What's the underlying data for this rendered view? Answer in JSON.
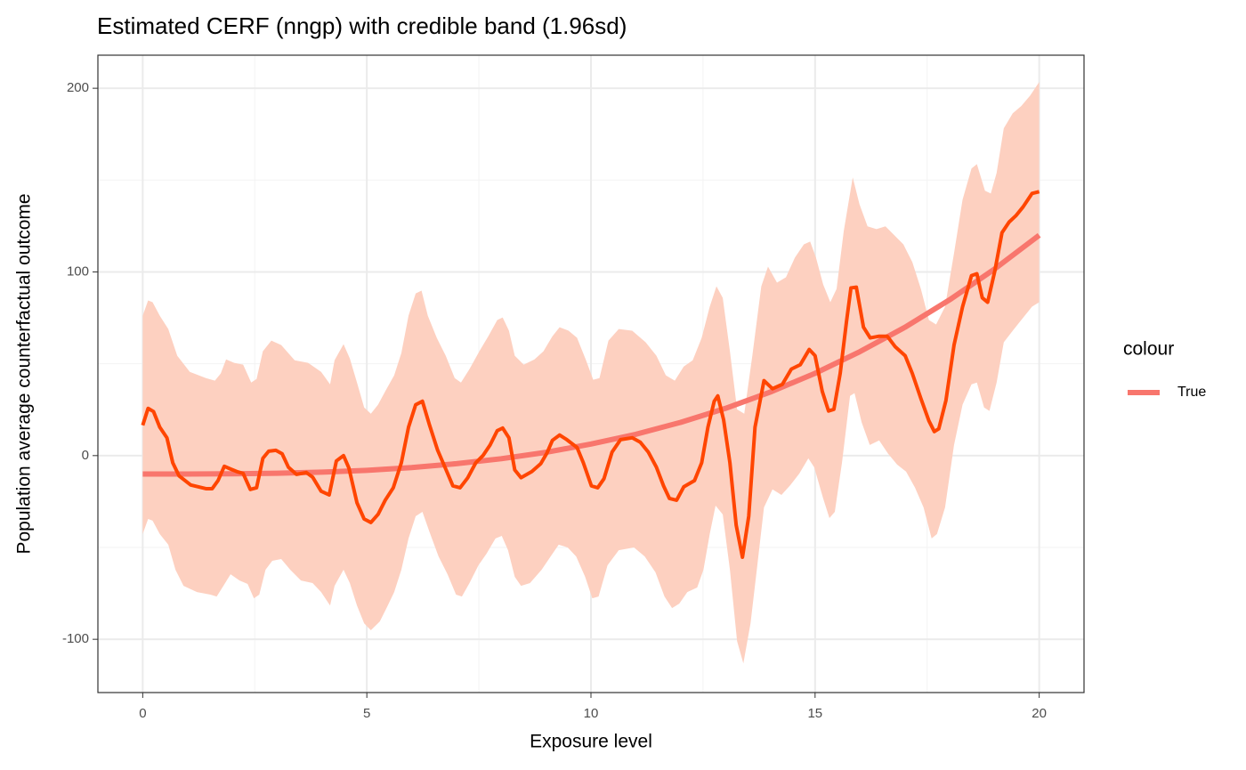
{
  "chart_data": {
    "type": "line",
    "title": "Estimated CERF (nngp) with credible band (1.96sd)",
    "x_label": "Exposure level",
    "y_label": "Population average counterfactual outcome",
    "legend_title": "colour",
    "xlim": [
      -1,
      21
    ],
    "ylim": [
      -129,
      218
    ],
    "xticks": [
      0,
      5,
      10,
      15,
      20
    ],
    "yticks": [
      -100,
      0,
      100,
      200
    ],
    "x_minor_grid": [
      2.5,
      7.5,
      12.5,
      17.5
    ],
    "y_minor_grid": [
      -50,
      50,
      150
    ],
    "grid": true,
    "series": [
      {
        "name": "True",
        "color": "#f8766d",
        "x": [
          0,
          1,
          2,
          3,
          4,
          5,
          6,
          7,
          8,
          9,
          10,
          11,
          12,
          13,
          14,
          15,
          16,
          17,
          18,
          19,
          20
        ],
        "values": [
          -10,
          -10,
          -9.9,
          -9.6,
          -9,
          -8,
          -6.5,
          -4.4,
          -1.7,
          1.8,
          6.3,
          11.6,
          18.1,
          25.7,
          34.6,
          44.8,
          56.6,
          69.8,
          84.8,
          101.5,
          120
        ]
      }
    ],
    "estimate": {
      "color": "#ff4500",
      "x": [
        0,
        0.12,
        0.24,
        0.38,
        0.54,
        0.67,
        0.81,
        1.07,
        1.41,
        1.55,
        1.68,
        1.82,
        1.96,
        2.1,
        2.24,
        2.4,
        2.54,
        2.68,
        2.81,
        2.97,
        3.11,
        3.25,
        3.43,
        3.65,
        3.79,
        3.98,
        4.16,
        4.32,
        4.48,
        4.6,
        4.78,
        4.94,
        5.09,
        5.25,
        5.41,
        5.59,
        5.77,
        5.93,
        6.09,
        6.24,
        6.4,
        6.58,
        6.76,
        6.92,
        7.08,
        7.25,
        7.43,
        7.59,
        7.75,
        7.91,
        8.03,
        8.17,
        8.3,
        8.44,
        8.68,
        8.88,
        9.02,
        9.14,
        9.3,
        9.46,
        9.69,
        9.83,
        10.01,
        10.15,
        10.29,
        10.47,
        10.66,
        10.92,
        11.1,
        11.28,
        11.46,
        11.62,
        11.75,
        11.91,
        12.07,
        12.31,
        12.47,
        12.61,
        12.75,
        12.83,
        12.96,
        13.1,
        13.24,
        13.38,
        13.52,
        13.66,
        13.86,
        14.05,
        14.27,
        14.47,
        14.67,
        14.87,
        15,
        15.16,
        15.3,
        15.42,
        15.56,
        15.7,
        15.8,
        15.92,
        16.08,
        16.23,
        16.43,
        16.61,
        16.79,
        17.01,
        17.17,
        17.36,
        17.54,
        17.66,
        17.76,
        17.92,
        18.1,
        18.29,
        18.49,
        18.61,
        18.73,
        18.85,
        19.01,
        19.17,
        19.33,
        19.48,
        19.64,
        19.84,
        20
      ],
      "values": [
        16.5,
        25.7,
        24,
        15.5,
        9.7,
        -3.9,
        -11,
        -16,
        -18,
        -18,
        -13.6,
        -5.8,
        -7.3,
        -8.7,
        -9.7,
        -18.4,
        -17.5,
        -1.5,
        2.4,
        2.9,
        1,
        -6.3,
        -10.2,
        -9.2,
        -11.7,
        -19.4,
        -21.4,
        -2.9,
        0,
        -6.8,
        -25.7,
        -34.5,
        -36.4,
        -32,
        -24.3,
        -17.5,
        -3.9,
        15.5,
        27.7,
        29.6,
        16.5,
        2.9,
        -7.3,
        -16.5,
        -17.5,
        -12.1,
        -3.9,
        0,
        5.8,
        13.6,
        15,
        9.7,
        -7.8,
        -12,
        -8.7,
        -4.4,
        1.5,
        8.3,
        11.2,
        8.7,
        4.4,
        -3.9,
        -16.5,
        -17.5,
        -12.6,
        1.9,
        8.7,
        9.7,
        7.3,
        1.9,
        -6.3,
        -16.5,
        -23.3,
        -24.3,
        -17,
        -13.6,
        -3.9,
        15.5,
        29.6,
        32.5,
        19.4,
        -3.9,
        -37.9,
        -55.3,
        -33,
        15.5,
        40.8,
        36.4,
        38.8,
        47.1,
        49.5,
        57.8,
        54.4,
        35,
        24.3,
        25.2,
        44.7,
        72.8,
        91.3,
        91.7,
        69.9,
        64.1,
        65,
        65,
        59.2,
        54.4,
        44.7,
        31.1,
        18.9,
        13.1,
        14.6,
        30.1,
        60.2,
        81,
        98,
        99,
        85.9,
        83.5,
        100.5,
        121.4,
        127.2,
        130.6,
        135.4,
        142.7,
        143.7
      ]
    },
    "band": {
      "color": "#fdd0c0",
      "upper": {
        "x": [
          0,
          0.12,
          0.22,
          0.38,
          0.57,
          0.77,
          1.05,
          1.41,
          1.61,
          1.74,
          1.86,
          2.04,
          2.24,
          2.42,
          2.54,
          2.68,
          2.87,
          3.09,
          3.39,
          3.69,
          3.98,
          4.18,
          4.28,
          4.48,
          4.62,
          4.78,
          4.94,
          5.09,
          5.25,
          5.41,
          5.61,
          5.77,
          5.93,
          6.09,
          6.22,
          6.36,
          6.56,
          6.76,
          6.96,
          7.1,
          7.29,
          7.51,
          7.71,
          7.91,
          8.03,
          8.17,
          8.3,
          8.5,
          8.74,
          8.94,
          9.14,
          9.3,
          9.5,
          9.69,
          9.89,
          10.05,
          10.19,
          10.39,
          10.62,
          10.92,
          11.22,
          11.46,
          11.67,
          11.87,
          12.07,
          12.27,
          12.47,
          12.65,
          12.8,
          12.94,
          13.1,
          13.26,
          13.42,
          13.6,
          13.8,
          13.95,
          14.15,
          14.35,
          14.55,
          14.75,
          14.89,
          15.02,
          15.18,
          15.34,
          15.48,
          15.64,
          15.84,
          15.99,
          16.17,
          16.37,
          16.57,
          16.77,
          16.97,
          17.17,
          17.36,
          17.54,
          17.7,
          17.9,
          18.1,
          18.29,
          18.49,
          18.61,
          18.79,
          18.92,
          19.05,
          19.21,
          19.41,
          19.6,
          19.8,
          20
        ],
        "values": [
          76.2,
          84.5,
          83.5,
          76.2,
          68.9,
          54.4,
          45.6,
          42.2,
          40.8,
          44.7,
          52.4,
          50.5,
          49.5,
          39.8,
          41.7,
          56.8,
          62.6,
          60.2,
          51.9,
          50.5,
          45.6,
          38.8,
          51.9,
          60.7,
          52.9,
          39.8,
          26.2,
          22.8,
          27.7,
          35,
          43.7,
          55.8,
          76.2,
          88.3,
          89.8,
          76.2,
          64.1,
          54.4,
          42.2,
          39.8,
          47.1,
          56.8,
          65,
          73.8,
          75.2,
          68,
          54.4,
          49.5,
          52.4,
          56.8,
          65,
          69.9,
          68,
          64.1,
          51.9,
          41.3,
          42.2,
          62.6,
          68.9,
          68,
          61.7,
          54.4,
          43.7,
          40.8,
          48.5,
          51.9,
          64.1,
          81.1,
          92.2,
          85.9,
          56.8,
          25.2,
          22.8,
          54.4,
          92.2,
          102.9,
          94.2,
          97.1,
          107.8,
          115,
          116.5,
          107.8,
          93.2,
          83.5,
          90.8,
          122.3,
          151.5,
          136.9,
          124.8,
          123.3,
          124.8,
          119.9,
          115,
          105.3,
          90.8,
          73.8,
          71.4,
          81.1,
          110.2,
          139.3,
          156.3,
          158.7,
          144.2,
          142.7,
          153.9,
          178.2,
          186.4,
          190.3,
          196.1,
          203.4
        ]
      },
      "lower": {
        "x": [
          0,
          0.12,
          0.22,
          0.38,
          0.57,
          0.73,
          0.91,
          1.21,
          1.51,
          1.65,
          1.8,
          1.96,
          2.16,
          2.34,
          2.48,
          2.6,
          2.74,
          2.89,
          3.09,
          3.29,
          3.53,
          3.79,
          3.98,
          4.18,
          4.28,
          4.48,
          4.62,
          4.78,
          4.94,
          5.09,
          5.29,
          5.45,
          5.61,
          5.77,
          5.93,
          6.09,
          6.24,
          6.4,
          6.6,
          6.8,
          6.99,
          7.12,
          7.29,
          7.49,
          7.67,
          7.87,
          8.01,
          8.15,
          8.3,
          8.44,
          8.64,
          8.9,
          9.1,
          9.28,
          9.48,
          9.67,
          9.87,
          10.03,
          10.17,
          10.37,
          10.62,
          10.96,
          11.2,
          11.44,
          11.64,
          11.81,
          11.97,
          12.15,
          12.37,
          12.51,
          12.65,
          12.78,
          12.94,
          13.1,
          13.26,
          13.4,
          13.56,
          13.7,
          13.86,
          14.05,
          14.25,
          14.45,
          14.65,
          14.85,
          14.98,
          15.18,
          15.32,
          15.44,
          15.6,
          15.78,
          15.88,
          16.04,
          16.22,
          16.43,
          16.63,
          16.83,
          17.03,
          17.23,
          17.42,
          17.6,
          17.72,
          17.9,
          18.1,
          18.29,
          18.49,
          18.61,
          18.77,
          18.89,
          19.05,
          19.21,
          19.41,
          19.6,
          19.84,
          20
        ],
        "values": [
          -42.7,
          -34.5,
          -35.4,
          -42.7,
          -48.5,
          -62.1,
          -70.9,
          -74.3,
          -75.7,
          -76.7,
          -70.9,
          -64.6,
          -68,
          -69.9,
          -77.7,
          -75.7,
          -62.1,
          -57.3,
          -56.3,
          -62.1,
          -68,
          -69.4,
          -74.3,
          -81.6,
          -70.9,
          -62.1,
          -69.4,
          -81.6,
          -91.3,
          -95.1,
          -90.3,
          -82.5,
          -74.3,
          -62.1,
          -45.1,
          -33,
          -30.6,
          -41.7,
          -54.9,
          -64.6,
          -75.7,
          -76.7,
          -69.4,
          -59.7,
          -53.4,
          -45.1,
          -43.7,
          -51.5,
          -66,
          -70.9,
          -69.4,
          -62.1,
          -54.9,
          -48.5,
          -50,
          -54.9,
          -66,
          -77.7,
          -76.7,
          -59.7,
          -51.5,
          -50,
          -54.9,
          -63.6,
          -76.7,
          -83,
          -80.6,
          -74.3,
          -71.8,
          -62.1,
          -42.7,
          -27.2,
          -32,
          -62.1,
          -101,
          -113.1,
          -91.3,
          -62.1,
          -28.2,
          -18.4,
          -21.4,
          -16,
          -9.7,
          -1.5,
          -6.3,
          -23.3,
          -34,
          -30.6,
          -3.9,
          32.5,
          34,
          18,
          5.8,
          8.3,
          1,
          -4.9,
          -8.7,
          -17.5,
          -28.2,
          -45.1,
          -42.7,
          -28.2,
          5.8,
          27.7,
          38.8,
          39.8,
          26.2,
          24.3,
          39.8,
          61.7,
          68,
          73.8,
          81.1,
          83.5
        ]
      }
    }
  }
}
